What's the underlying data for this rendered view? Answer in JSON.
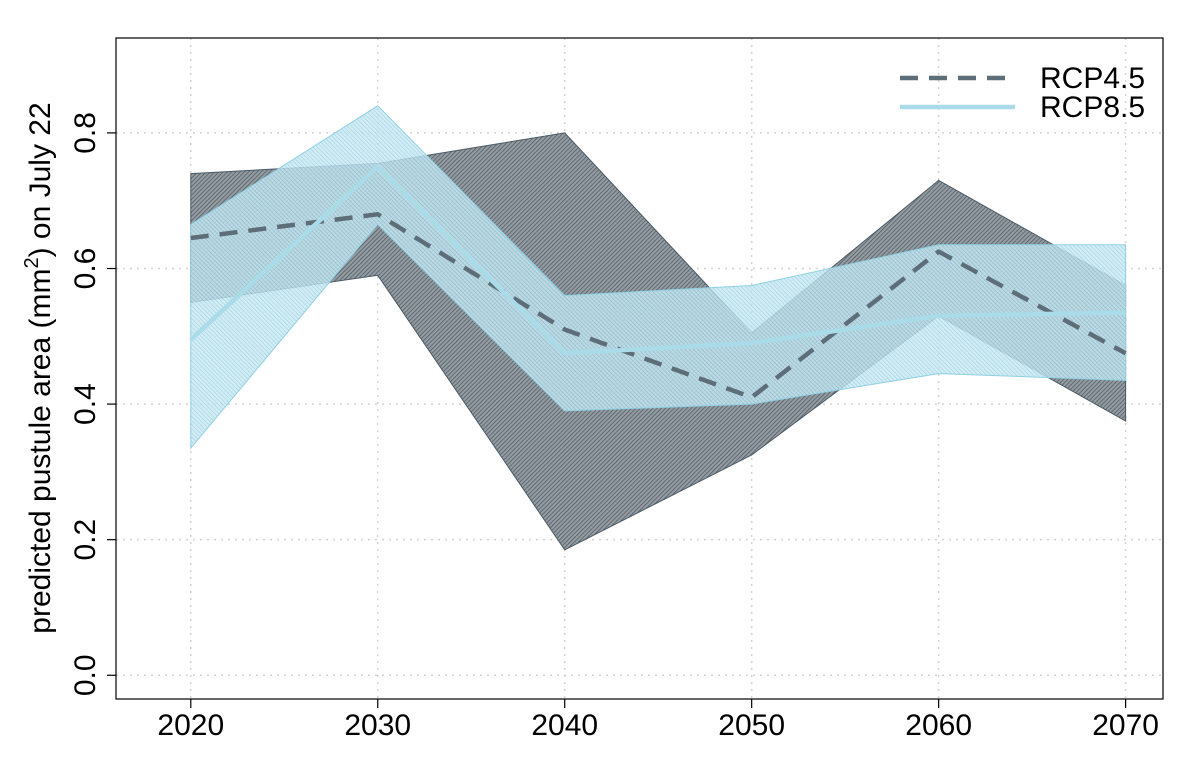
{
  "chart_data": {
    "type": "line",
    "title": "",
    "xlabel": "",
    "ylabel": {
      "prefix": "predicted pustule area (mm",
      "superscript": "2",
      "suffix": ") on July 22"
    },
    "x": [
      2020,
      2030,
      2040,
      2050,
      2060,
      2070
    ],
    "xlim": [
      2016,
      2072
    ],
    "ylim": [
      -0.035,
      0.94
    ],
    "yticks": [
      0.0,
      0.2,
      0.4,
      0.6,
      0.8
    ],
    "ytick_labels": [
      "0.0",
      "0.2",
      "0.4",
      "0.6",
      "0.8"
    ],
    "grid": true,
    "legend_position": "top-right",
    "series": [
      {
        "name": "RCP4.5",
        "style": "dashed",
        "color": "#5e6e78",
        "band_color": "#4a5a66",
        "values": [
          0.645,
          0.68,
          0.51,
          0.41,
          0.625,
          0.475
        ],
        "lower": [
          0.55,
          0.59,
          0.185,
          0.325,
          0.53,
          0.375
        ],
        "upper": [
          0.74,
          0.755,
          0.8,
          0.505,
          0.73,
          0.575
        ]
      },
      {
        "name": "RCP8.5",
        "style": "solid",
        "color": "#a9dbe8",
        "band_color": "#8fd0e4",
        "values": [
          0.495,
          0.75,
          0.475,
          0.49,
          0.53,
          0.535
        ],
        "lower": [
          0.335,
          0.665,
          0.39,
          0.4,
          0.445,
          0.435
        ],
        "upper": [
          0.665,
          0.84,
          0.56,
          0.575,
          0.635,
          0.635
        ]
      }
    ]
  }
}
